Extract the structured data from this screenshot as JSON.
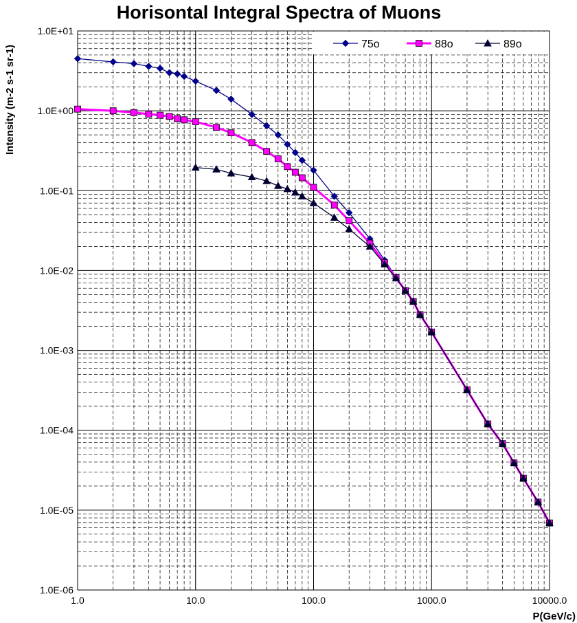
{
  "chart_data": {
    "type": "line",
    "title": "Horisontal Integral Spectra of Muons",
    "xlabel": "P(GeV/c)",
    "ylabel": "Intensity (m-2 s-1 sr-1)",
    "xscale": "log",
    "yscale": "log",
    "xlim": [
      1,
      10000
    ],
    "ylim": [
      1e-06,
      10
    ],
    "grid": true,
    "legend_position": "top-right",
    "x_tick_labels": [
      "1.0",
      "10.0",
      "100.0",
      "1000.0",
      "10000.0"
    ],
    "y_tick_labels": [
      "1.0E-06",
      "1.0E-05",
      "1.0E-04",
      "1.0E-03",
      "1.0E-02",
      "1.0E-01",
      "1.0E+00",
      "1.0E+01"
    ],
    "series": [
      {
        "name": "75o",
        "color": "#00008B",
        "marker": "diamond",
        "x": [
          1,
          2,
          3,
          4,
          5,
          6,
          7,
          8,
          10,
          15,
          20,
          30,
          40,
          50,
          60,
          70,
          80,
          100,
          150,
          200,
          300,
          400,
          500,
          600,
          700,
          800,
          1000,
          2000,
          3000,
          4000,
          5000,
          6000,
          8000,
          10000
        ],
        "values": [
          4.5,
          4.1,
          3.9,
          3.6,
          3.4,
          3.0,
          2.9,
          2.7,
          2.35,
          1.8,
          1.4,
          0.9,
          0.65,
          0.5,
          0.38,
          0.3,
          0.24,
          0.18,
          0.085,
          0.053,
          0.025,
          0.0135,
          0.0083,
          0.0056,
          0.0041,
          0.0028,
          0.0017,
          0.00032,
          0.00012,
          6.8e-05,
          3.9e-05,
          2.5e-05,
          1.26e-05,
          6.9e-06
        ]
      },
      {
        "name": "88o",
        "color": "#FF00FF",
        "marker": "square",
        "x": [
          1,
          2,
          3,
          4,
          5,
          6,
          7,
          8,
          10,
          15,
          20,
          30,
          40,
          50,
          60,
          70,
          80,
          100,
          150,
          200,
          300,
          400,
          500,
          600,
          700,
          800,
          1000,
          2000,
          3000,
          4000,
          5000,
          6000,
          8000,
          10000
        ],
        "values": [
          1.05,
          1.0,
          0.95,
          0.91,
          0.88,
          0.85,
          0.8,
          0.77,
          0.73,
          0.62,
          0.53,
          0.4,
          0.31,
          0.25,
          0.2,
          0.17,
          0.145,
          0.11,
          0.066,
          0.042,
          0.022,
          0.0125,
          0.0081,
          0.0056,
          0.0041,
          0.0028,
          0.0017,
          0.00032,
          0.00012,
          6.8e-05,
          3.9e-05,
          2.5e-05,
          1.26e-05,
          6.9e-06
        ]
      },
      {
        "name": "89o",
        "color": "#000033",
        "marker": "triangle",
        "x": [
          10,
          15,
          20,
          30,
          40,
          50,
          60,
          70,
          80,
          100,
          150,
          200,
          300,
          400,
          500,
          600,
          700,
          800,
          1000,
          2000,
          3000,
          4000,
          5000,
          6000,
          8000,
          10000
        ],
        "values": [
          0.195,
          0.185,
          0.165,
          0.148,
          0.132,
          0.115,
          0.105,
          0.095,
          0.085,
          0.07,
          0.046,
          0.033,
          0.02,
          0.012,
          0.008,
          0.0056,
          0.0041,
          0.0028,
          0.0017,
          0.00032,
          0.00012,
          6.8e-05,
          3.9e-05,
          2.5e-05,
          1.26e-05,
          6.9e-06
        ]
      }
    ]
  }
}
